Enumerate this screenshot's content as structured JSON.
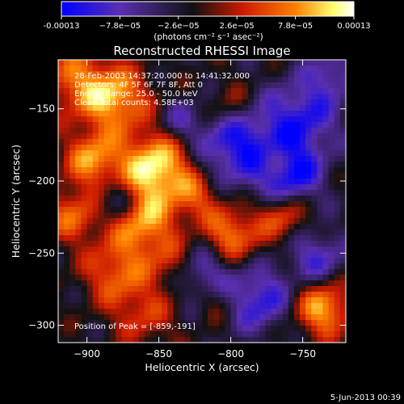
{
  "colorbar": {
    "ticks": [
      "-0.00013",
      "−7.8e−05",
      "−2.6e−05",
      "2.6e−05",
      "7.8e−05",
      "0.00013"
    ],
    "tick_values": [
      -0.00013,
      -7.8e-05,
      -2.6e-05,
      2.6e-05,
      7.8e-05,
      0.00013
    ],
    "range": [
      -0.00013,
      0.00013
    ],
    "units_label": "(photons cm⁻² s⁻¹ asec⁻²)",
    "colors": [
      "#0000ff",
      "#5a2fb0",
      "#111111",
      "#cc1a00",
      "#ff8000",
      "#ffff70",
      "#ffffff"
    ]
  },
  "chart_data": {
    "type": "heatmap",
    "title": "Reconstructed RHESSI Image",
    "xlabel": "Heliocentric X (arcsec)",
    "ylabel": "Heliocentric Y (arcsec)",
    "xlim": [
      -920,
      -720
    ],
    "ylim": [
      -312,
      -116
    ],
    "x_ticks": [
      -900,
      -850,
      -800,
      -750
    ],
    "y_ticks": [
      -150,
      -200,
      -250,
      -300
    ],
    "x_tick_labels": [
      "−900",
      "−850",
      "−800",
      "−750"
    ],
    "y_tick_labels": [
      "−150",
      "−200",
      "−250",
      "−300"
    ],
    "annotations": [
      "28-Feb-2003 14:37:20.000 to 14:41:32.000",
      "Detectors: 4F 5F 6F 7F 8F, Att 0",
      "Energy Range: 25.0 - 50.0 keV",
      "Clean    Total counts: 4.58E+03"
    ],
    "peak_label": "Position of Peak = [-859,-191]",
    "peak": [
      -859,
      -191
    ]
  },
  "footer": {
    "date": "5-Jun-2013 00:39"
  }
}
